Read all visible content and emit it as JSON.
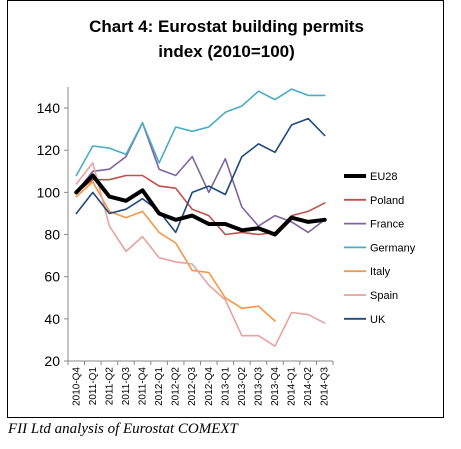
{
  "chart_data": {
    "type": "line",
    "title_line1": "Chart 4: Eurostat building permits",
    "title_line2": "index (2010=100)",
    "xlabel": "",
    "ylabel": "",
    "ylim": [
      20,
      150
    ],
    "yticks": [
      20,
      40,
      60,
      80,
      100,
      120,
      140
    ],
    "grid": false,
    "legend_position": "right",
    "categories": [
      "2010-Q4",
      "2011-Q1",
      "2011-Q2",
      "2011-Q3",
      "2011-Q4",
      "2012-Q1",
      "2012-Q2",
      "2012-Q3",
      "2012-Q4",
      "2013-Q1",
      "2013-Q2",
      "2013-Q3",
      "2013-Q4",
      "2014-Q1",
      "2014-Q2",
      "2014-Q3"
    ],
    "series": [
      {
        "name": "EU28",
        "color": "#000000",
        "width": 4,
        "values": [
          100,
          108,
          98,
          96,
          101,
          90,
          87,
          89,
          85,
          85,
          82,
          83,
          80,
          88,
          86,
          87
        ]
      },
      {
        "name": "Poland",
        "color": "#c0504d",
        "width": 1.6,
        "values": [
          100,
          106,
          106,
          108,
          108,
          103,
          102,
          92,
          89,
          80,
          81,
          80,
          81,
          89,
          91,
          95
        ]
      },
      {
        "name": "France",
        "color": "#8064a2",
        "width": 1.6,
        "values": [
          100,
          110,
          111,
          117,
          133,
          111,
          108,
          117,
          100,
          116,
          93,
          84,
          89,
          86,
          81,
          87
        ]
      },
      {
        "name": "Germany",
        "color": "#4bacc6",
        "width": 1.6,
        "values": [
          108,
          122,
          121,
          118,
          133,
          114,
          131,
          129,
          131,
          138,
          141,
          148,
          144,
          149,
          146,
          146
        ]
      },
      {
        "name": "Italy",
        "color": "#f79646",
        "width": 1.6,
        "values": [
          98,
          105,
          91,
          88,
          91,
          81,
          76,
          63,
          62,
          50,
          45,
          46,
          39,
          null,
          null,
          null
        ]
      },
      {
        "name": "Spain",
        "color": "#e6a3a1",
        "width": 1.6,
        "values": [
          104,
          114,
          84,
          72,
          79,
          69,
          67,
          66,
          56,
          49,
          32,
          32,
          27,
          43,
          42,
          38
        ]
      },
      {
        "name": "UK",
        "color": "#1f497d",
        "width": 1.6,
        "values": [
          90,
          100,
          90,
          92,
          97,
          91,
          81,
          100,
          103,
          99,
          117,
          123,
          119,
          132,
          135,
          127
        ]
      }
    ]
  },
  "caption": "FII Ltd analysis of Eurostat COMEXT"
}
